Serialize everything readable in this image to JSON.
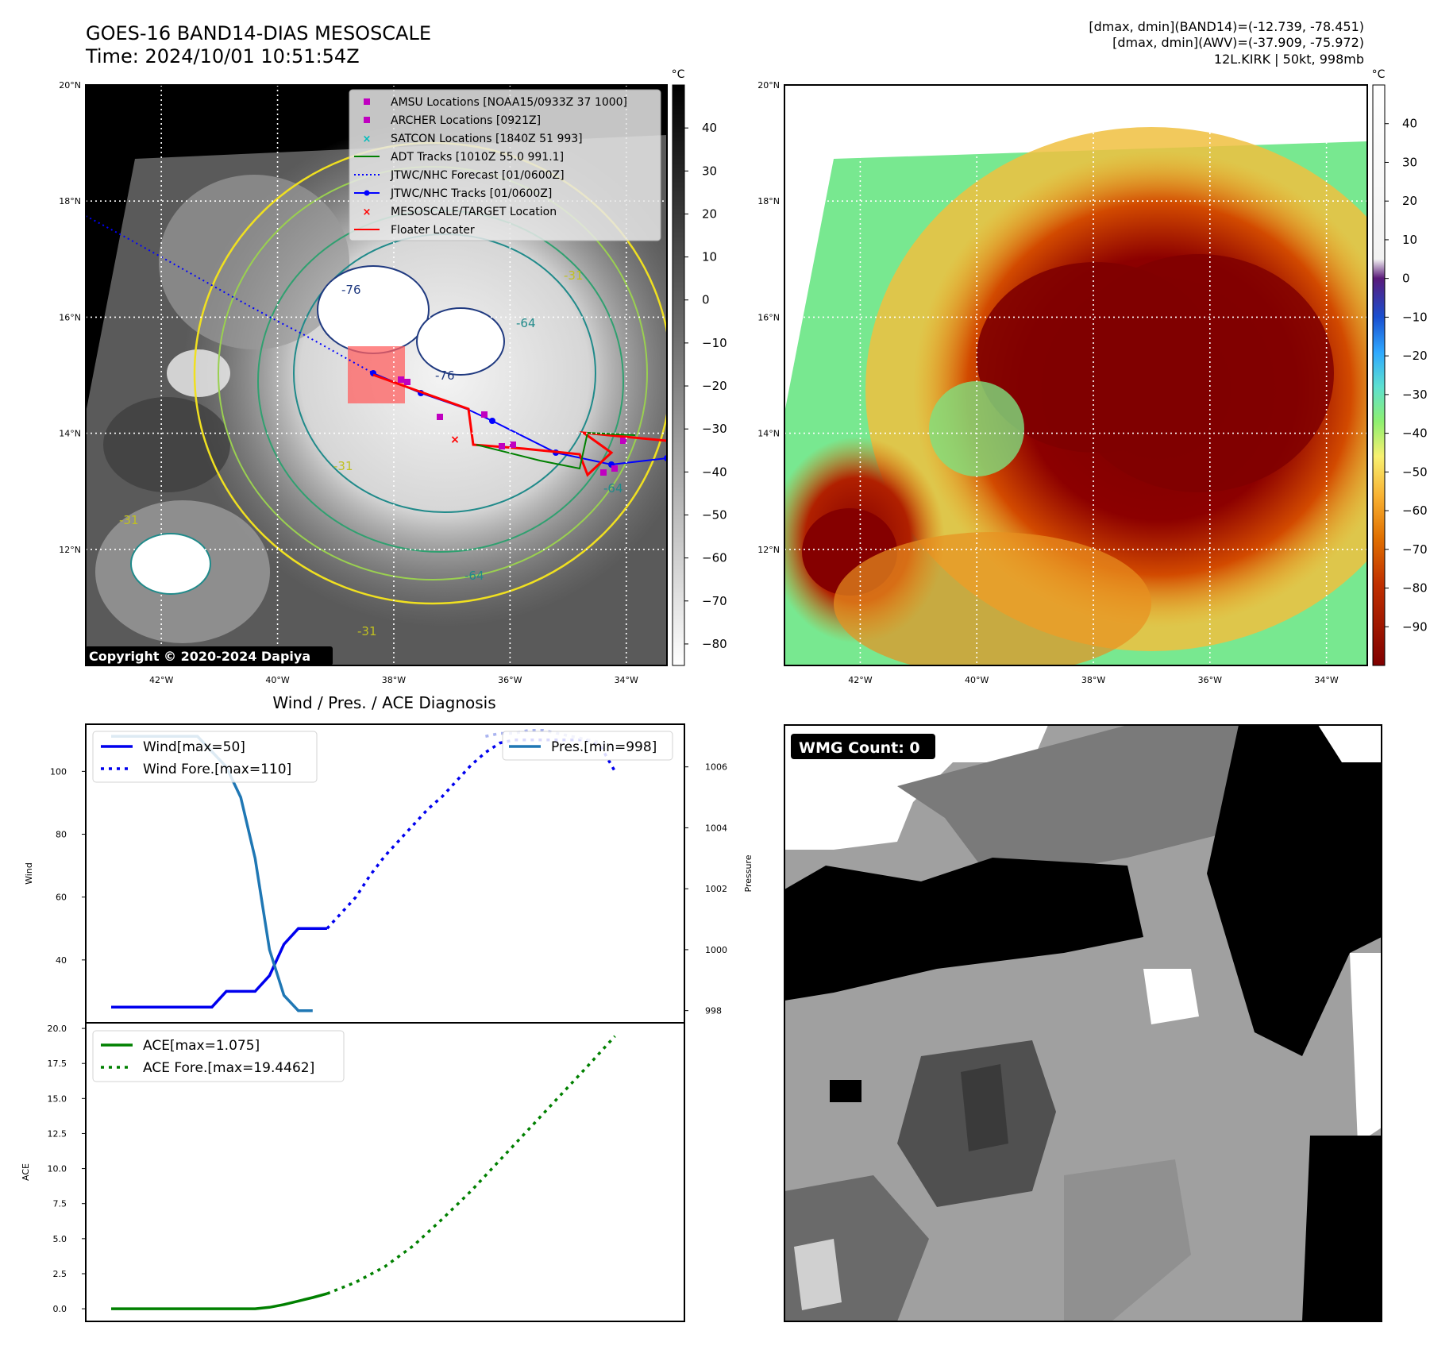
{
  "header": {
    "title_line1": "GOES-16 BAND14-DIAS MESOSCALE",
    "title_line2": "Time: 2024/10/01 10:51:54Z",
    "info_line1": "[dmax, dmin](BAND14)=(-12.739, -78.451)",
    "info_line2": "[dmax, dmin](AWV)=(-37.909, -75.972)",
    "info_line3": "12L.KIRK | 50kt, 998mb"
  },
  "map_axes": {
    "lat_ticks": [
      "20°N",
      "18°N",
      "16°N",
      "14°N",
      "12°N"
    ],
    "lat_values": [
      20,
      18,
      16,
      14,
      12
    ],
    "lon_ticks": [
      "42°W",
      "40°W",
      "38°W",
      "36°W",
      "34°W"
    ],
    "lon_values": [
      -42,
      -40,
      -38,
      -36,
      -34
    ],
    "lon_range": [
      -43.3,
      -33.3
    ],
    "lat_range": [
      10.0,
      20.0
    ],
    "grid": true
  },
  "colorbar_left": {
    "unit": "°C",
    "ticks": [
      "40",
      "30",
      "20",
      "10",
      "0",
      "−10",
      "−20",
      "−30",
      "−40",
      "−50",
      "−60",
      "−70",
      "−80"
    ],
    "tick_values": [
      40,
      30,
      20,
      10,
      0,
      -10,
      -20,
      -30,
      -40,
      -50,
      -60,
      -70,
      -80
    ],
    "range": [
      -85,
      50
    ]
  },
  "colorbar_right": {
    "unit": "°C",
    "ticks": [
      "40",
      "30",
      "20",
      "10",
      "0",
      "−10",
      "−20",
      "−30",
      "−40",
      "−50",
      "−60",
      "−70",
      "−80",
      "−90"
    ],
    "tick_values": [
      40,
      30,
      20,
      10,
      0,
      -10,
      -20,
      -30,
      -40,
      -50,
      -60,
      -70,
      -80,
      -90
    ],
    "range": [
      -100,
      50
    ]
  },
  "map_legend": {
    "items": [
      {
        "label": "AMSU Locations [NOAA15/0933Z 37 1000]",
        "color": "#c000c0",
        "marker": "square"
      },
      {
        "label": "ARCHER Locations [0921Z]",
        "color": "#c000c0",
        "marker": "square"
      },
      {
        "label": "SATCON Locations [1840Z 51 993]",
        "color": "#00bcbc",
        "marker": "x"
      },
      {
        "label": "ADT Tracks [1010Z 55.0 991.1]",
        "color": "#008000",
        "marker": "line"
      },
      {
        "label": "JTWC/NHC Forecast [01/0600Z]",
        "color": "#0000ff",
        "marker": "dotted"
      },
      {
        "label": "JTWC/NHC Tracks [01/0600Z]",
        "color": "#0000ff",
        "marker": "line-dot"
      },
      {
        "label": "MESOSCALE/TARGET Location",
        "color": "#ff0000",
        "marker": "x"
      },
      {
        "label": "Floater Locater",
        "color": "#ff0000",
        "marker": "line"
      }
    ]
  },
  "contour_labels": [
    "-76",
    "-76",
    "-64",
    "-64",
    "-64",
    "-31",
    "-31",
    "-31",
    "-31"
  ],
  "copyright": "Copyright © 2020-2024 Dapiya",
  "wmg": {
    "label": "WMG Count: 0"
  },
  "chart_data": [
    {
      "type": "line",
      "title": "Wind / Pres. / ACE Diagnosis",
      "ylabel": "Wind",
      "ylabel_right": "Pressure",
      "x": [
        0,
        1,
        2,
        3,
        4,
        5,
        6,
        7,
        8,
        9,
        10,
        11,
        12,
        13,
        14,
        15,
        16,
        17,
        18,
        19,
        20,
        21,
        22,
        23,
        24,
        25,
        26,
        27,
        28,
        29,
        30,
        31,
        32,
        33,
        34,
        35
      ],
      "ylim": [
        20,
        115
      ],
      "ylim_right": [
        997.6,
        1007.4
      ],
      "yticks": [
        40,
        60,
        80,
        100
      ],
      "yticks_right": [
        998,
        1000,
        1002,
        1004,
        1006
      ],
      "legend_left": [
        "Wind[max=50]",
        "Wind Fore.[max=110]"
      ],
      "legend_right": [
        "Pres.[min=998]"
      ],
      "series": [
        {
          "name": "Wind[max=50]",
          "axis": "left",
          "style": "solid",
          "color": "#0000ee",
          "x": [
            0,
            1,
            2,
            3,
            4,
            5,
            6,
            7,
            8,
            9,
            10,
            11,
            12,
            13,
            14,
            15
          ],
          "values": [
            25,
            25,
            25,
            25,
            25,
            25,
            25,
            25,
            30,
            30,
            30,
            35,
            45,
            50,
            50,
            50
          ]
        },
        {
          "name": "Wind Fore.[max=110]",
          "axis": "left",
          "style": "dotted",
          "color": "#0000ee",
          "x": [
            15,
            16,
            17,
            18,
            19,
            20,
            21,
            22,
            23,
            24,
            25,
            26,
            27,
            28,
            29,
            30,
            31,
            32,
            33,
            34,
            35
          ],
          "values": [
            50,
            55,
            60,
            67,
            73,
            78,
            83,
            88,
            92,
            97,
            102,
            106,
            109,
            110,
            110,
            110,
            110,
            110,
            110,
            108,
            100
          ]
        },
        {
          "name": "Pres.[min=998]",
          "axis": "right",
          "style": "solid",
          "color": "#1f77b4",
          "x": [
            0,
            1,
            2,
            3,
            4,
            5,
            6,
            7,
            8,
            9,
            10,
            11,
            12,
            13,
            14
          ],
          "values": [
            1007,
            1007,
            1007,
            1007,
            1007,
            1007,
            1007,
            1006.5,
            1006,
            1005,
            1003,
            1000,
            998.5,
            998,
            998
          ]
        },
        {
          "name": "Pres. Fore.",
          "axis": "right",
          "style": "dotted",
          "color": "#aab4f0",
          "x": [
            26,
            27,
            28,
            29,
            30,
            31,
            32,
            33,
            34,
            35
          ],
          "values": [
            1007,
            1007.1,
            1007.1,
            1007.2,
            1007.2,
            1007.1,
            1007,
            1006.9,
            1006.8,
            1006.6
          ]
        }
      ]
    },
    {
      "type": "line",
      "ylabel": "ACE",
      "ylim": [
        -0.9,
        20.4
      ],
      "yticks": [
        0.0,
        2.5,
        5.0,
        7.5,
        10.0,
        12.5,
        15.0,
        17.5,
        20.0
      ],
      "ytick_labels": [
        "0.0",
        "2.5",
        "5.0",
        "7.5",
        "10.0",
        "12.5",
        "15.0",
        "17.5",
        "20.0"
      ],
      "legend": [
        "ACE[max=1.075]",
        "ACE Fore.[max=19.4462]"
      ],
      "series": [
        {
          "name": "ACE[max=1.075]",
          "style": "solid",
          "color": "#008000",
          "x": [
            0,
            2,
            4,
            6,
            8,
            9,
            10,
            11,
            12,
            13,
            14,
            15
          ],
          "values": [
            0,
            0,
            0,
            0,
            0,
            0,
            0,
            0.1,
            0.3,
            0.55,
            0.8,
            1.075
          ]
        },
        {
          "name": "ACE Fore.[max=19.4462]",
          "style": "dotted",
          "color": "#008000",
          "x": [
            15,
            17,
            19,
            21,
            23,
            25,
            27,
            29,
            31,
            33,
            35
          ],
          "values": [
            1.075,
            1.9,
            3.0,
            4.5,
            6.4,
            8.4,
            10.6,
            12.8,
            15.0,
            17.2,
            19.4462
          ]
        }
      ]
    }
  ]
}
